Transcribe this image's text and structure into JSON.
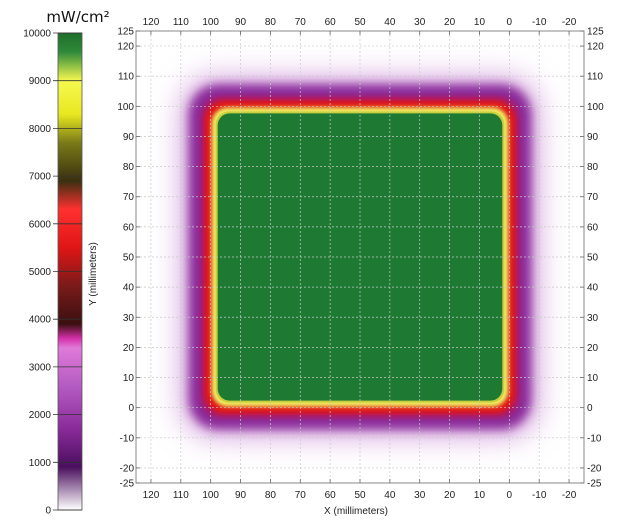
{
  "chart_data": {
    "type": "heatmap",
    "colorbar": {
      "unit_label": "mW/cm²",
      "range": [
        0,
        10000
      ],
      "ticks": [
        0,
        1000,
        2000,
        3000,
        4000,
        5000,
        6000,
        7000,
        8000,
        9000,
        10000
      ],
      "stops": [
        {
          "value": 0,
          "color": "#ffffff"
        },
        {
          "value": 900,
          "color": "#4a0f5e"
        },
        {
          "value": 1700,
          "color": "#8a2a9a"
        },
        {
          "value": 2600,
          "color": "#b45cc2"
        },
        {
          "value": 3400,
          "color": "#e07ad8"
        },
        {
          "value": 3600,
          "color": "#d42fa8"
        },
        {
          "value": 3900,
          "color": "#3a1010"
        },
        {
          "value": 4700,
          "color": "#7a1a1a"
        },
        {
          "value": 5500,
          "color": "#e01515"
        },
        {
          "value": 6300,
          "color": "#ff3030"
        },
        {
          "value": 6900,
          "color": "#3a3010"
        },
        {
          "value": 7700,
          "color": "#7a7a18"
        },
        {
          "value": 8300,
          "color": "#e8e820"
        },
        {
          "value": 9000,
          "color": "#f6f850"
        },
        {
          "value": 9600,
          "color": "#2f8a3a"
        },
        {
          "value": 10000,
          "color": "#1e6e2a"
        }
      ]
    },
    "x_axis": {
      "label": "X (millimeters)",
      "range": [
        125,
        -25
      ],
      "ticks": [
        120,
        110,
        100,
        90,
        80,
        70,
        60,
        50,
        40,
        30,
        20,
        10,
        0,
        -10,
        -20
      ]
    },
    "y_axis": {
      "label": "Y (millimeters)",
      "range": [
        -25,
        125
      ],
      "ticks": [
        -25,
        -20,
        -10,
        0,
        10,
        20,
        30,
        40,
        50,
        60,
        70,
        80,
        90,
        100,
        110,
        120,
        125
      ]
    },
    "field": {
      "x_extent": [
        0,
        100
      ],
      "y_extent": [
        0,
        100
      ],
      "plateau_value": 10000,
      "description_colors": [
        "#1e7a33",
        "#f0f060",
        "#e01515",
        "#8a2a9a"
      ]
    },
    "grid": true
  }
}
